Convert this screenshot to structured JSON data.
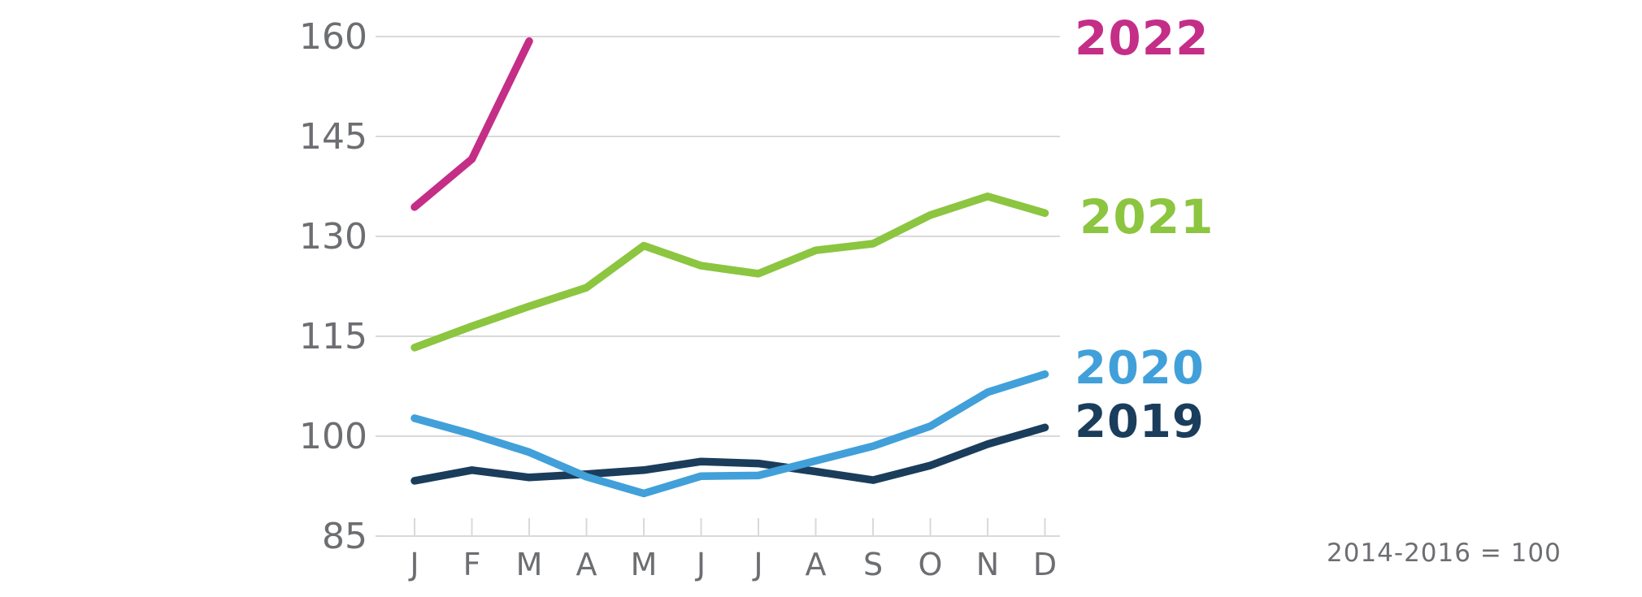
{
  "chart_data": {
    "type": "line",
    "title": "",
    "x_categories": [
      "J",
      "F",
      "M",
      "A",
      "M",
      "J",
      "J",
      "A",
      "S",
      "O",
      "N",
      "D"
    ],
    "y_ticks": [
      85,
      100,
      115,
      130,
      145,
      160
    ],
    "ylim": [
      85,
      163
    ],
    "grid": "horizontal-only",
    "legend_position": "right-of-plot",
    "footnote": "2014-2016 = 100",
    "series": [
      {
        "name": "2019",
        "color": "#1B3D5C",
        "values": [
          93.3,
          94.9,
          93.8,
          94.3,
          94.9,
          96.2,
          95.9,
          94.7,
          93.4,
          95.6,
          98.8,
          101.3
        ]
      },
      {
        "name": "2020",
        "color": "#41A0D9",
        "values": [
          102.7,
          100.3,
          97.6,
          93.9,
          91.4,
          94.0,
          94.1,
          96.3,
          98.5,
          101.5,
          106.6,
          109.3
        ]
      },
      {
        "name": "2021",
        "color": "#8CC540",
        "values": [
          113.3,
          116.5,
          119.5,
          122.3,
          128.6,
          125.6,
          124.4,
          127.9,
          128.9,
          133.2,
          136.0,
          133.5
        ]
      },
      {
        "name": "2022",
        "color": "#C42E87",
        "values": [
          134.4,
          141.6,
          159.3
        ]
      }
    ]
  },
  "colors": {
    "axis_text": "#6D6E71",
    "gridline": "#D9D9DA",
    "background": "#FFFFFF"
  }
}
